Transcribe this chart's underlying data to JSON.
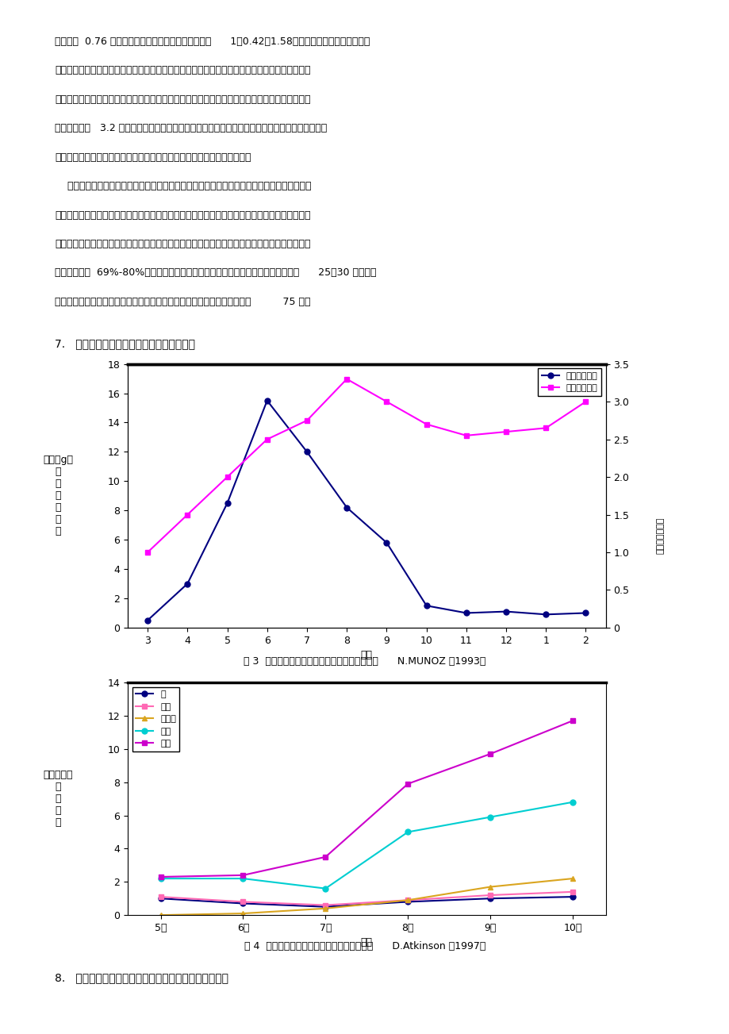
{
  "text_blocks": [
    "公斤，钾  0.76 公斤，对氮、磷、钾的吸收比例大体为      1：0.42：1.58。桃树对氮素较为敏感，氮肥",
    "适量，能促进枝叶生长，有利于花芽分化和果实发育。磷肥不足，则根系生长发育不良，春季萌芽",
    "开花推迟，影响新梢和果实生长，降低品质，且不耐贮运。钾素对果实的发育特别重要，在果实内",
    "的含量为氮的   3.2 倍。钾肥充足，果个大，含糖量高，风味浓，色泽鲜艳，轻度缺钾时，在硬核期",
    "以前不易发现，而到果实第二次膨大，才表现出果实不能迅速膨大的症状。",
    "    桃树所吸收的矿质营养元素，除了满足当年产量形成的需要外，还要形成足够的营养生长和贮",
    "藏养分，以备继续生长发育的需要。营养生长和生殖生长对贮藏营养都有很强的依赖性，贮藏营养",
    "主要通过秋季追施提供的。树体这种循环供给养分的能力使得肥料效应可能不会在当年完全显现。",
    "有研究表明，  69%-80%的氮贮藏在桃树的根系中。还有研究表明，开始新生长的前      25－30 天，所有",
    "的氮素全部来自贮藏营养，贮藏氮素可以用来供给新的生长一直到花后大约          75 天。"
  ],
  "section_title": "7.   一年生桃树的干物质累积及氮素吸收规律",
  "chart1": {
    "x_labels": [
      "3",
      "4",
      "5",
      "6",
      "7",
      "8",
      "9",
      "10",
      "11",
      "12",
      "1",
      "2"
    ],
    "x_values": [
      3,
      4,
      5,
      6,
      7,
      8,
      9,
      10,
      11,
      12,
      13,
      14
    ],
    "nitrogen_y": [
      0.5,
      3.0,
      8.5,
      15.5,
      12.0,
      8.2,
      5.8,
      1.5,
      1.0,
      1.1,
      0.9,
      1.0
    ],
    "drymatter_y": [
      1.0,
      1.5,
      2.0,
      2.5,
      2.75,
      3.3,
      3.0,
      2.7,
      2.55,
      2.6,
      2.65,
      3.0
    ],
    "nitrogen_color": "#000080",
    "drymatter_color": "#FF00FF",
    "left_ylim": [
      0,
      18
    ],
    "right_ylim": [
      0,
      3.5
    ],
    "left_yticks": [
      0,
      2,
      4,
      6,
      8,
      10,
      12,
      14,
      16,
      18
    ],
    "right_yticks": [
      0,
      0.5,
      1.0,
      1.5,
      2.0,
      2.5,
      3.0,
      3.5
    ],
    "legend_nitrogen": "氮素的吸收量",
    "legend_drymatter": "干物质累积量",
    "xlabel": "月份",
    "caption": "图 3  一年生桃树的氮素吸收及干物质累积情况（      N.MUNOZ ，1993）"
  },
  "chart2": {
    "x_labels": [
      "5月",
      "6月",
      "7月",
      "8月",
      "9月",
      "10月"
    ],
    "root_y": [
      1.0,
      0.7,
      0.5,
      0.8,
      1.0,
      1.1
    ],
    "rootstock_y": [
      1.1,
      0.8,
      0.6,
      0.9,
      1.2,
      1.4
    ],
    "shoots_y": [
      0.0,
      0.1,
      0.4,
      0.9,
      1.7,
      2.2
    ],
    "leaves_y": [
      2.2,
      2.2,
      1.6,
      5.0,
      5.9,
      6.8
    ],
    "total_y": [
      2.3,
      2.4,
      3.5,
      7.9,
      9.7,
      11.7
    ],
    "root_color": "#000080",
    "rootstock_color": "#FF69B4",
    "shoots_color": "#DAA520",
    "leaves_color": "#00CED1",
    "total_color": "#CC00CC",
    "ylim": [
      0,
      14
    ],
    "yticks": [
      0,
      2,
      4,
      6,
      8,
      10,
      12,
      14
    ],
    "xlabel": "日期",
    "legend_root": "根",
    "legend_rootstock": "根砧",
    "legend_shoots": "嫩枝条",
    "legend_leaves": "叶片",
    "legend_total": "总量",
    "caption": "图 4  一年生树体各部分氮素含量的季节变化（      D.Atkinson ，1997）"
  },
  "section2_title": "8.   三年生早熟和晚熟品种桃的生长规律及养分吸收规律"
}
